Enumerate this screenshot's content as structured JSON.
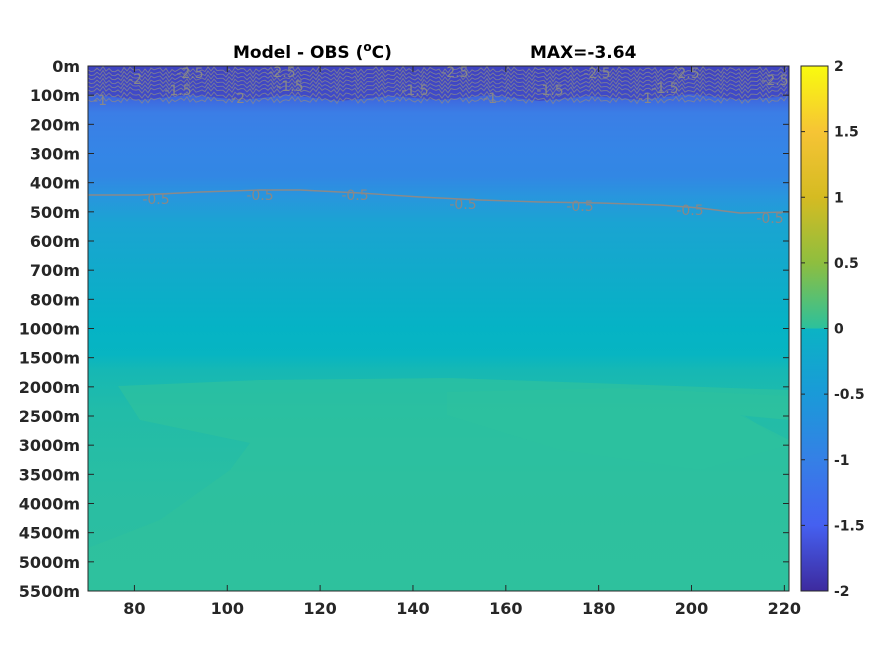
{
  "chart_data": {
    "type": "heatmap",
    "title": "Model - OBS (°C)",
    "title_parts": {
      "prefix": "Model - OBS (",
      "superscript": "o",
      "suffix": "C)"
    },
    "max_label": "MAX=-3.64",
    "xlabel": "",
    "ylabel": "",
    "xlim": [
      70,
      221
    ],
    "x_ticks": [
      80,
      100,
      120,
      140,
      160,
      180,
      200,
      220
    ],
    "x_tick_labels": [
      "80",
      "100",
      "120",
      "140",
      "160",
      "180",
      "200",
      "220"
    ],
    "y_tick_labels": [
      "0m",
      "100m",
      "200m",
      "300m",
      "400m",
      "500m",
      "600m",
      "700m",
      "800m",
      "1000m",
      "1500m",
      "2000m",
      "2500m",
      "3000m",
      "3500m",
      "4000m",
      "4500m",
      "5000m",
      "5500m"
    ],
    "colorbar": {
      "min": -2,
      "max": 2,
      "ticks": [
        2,
        1.5,
        1,
        0.5,
        0,
        -0.5,
        -1,
        -1.5,
        -2
      ],
      "tick_labels": [
        "2",
        "1.5",
        "1",
        "0.5",
        "0",
        "-0.5",
        "-1",
        "-1.5",
        "-2"
      ]
    },
    "contour_labels": [
      "-2",
      "-2.5",
      "-2.5",
      "-1.5",
      "-1.5",
      "-2",
      "-2.5",
      "-1.5",
      "-2.5",
      "-1.5",
      "-2.5",
      "-1.5",
      "-2.5",
      "-1",
      "-1",
      "-1",
      "-0.5",
      "-0.5",
      "-0.5",
      "-0.5",
      "-0.5",
      "-0.5",
      "-0.5"
    ],
    "contour_line_color": "#8a8a8a",
    "colors": {
      "surface_dark": "#3a3bb0",
      "upper_blue": "#3d80e6",
      "mid_blue": "#2b91df",
      "thermocline": "#11a6cc",
      "deep_cyan": "#05b3c6",
      "deep_teal": "#20bdaa",
      "abyss_green": "#2fc19d"
    }
  }
}
